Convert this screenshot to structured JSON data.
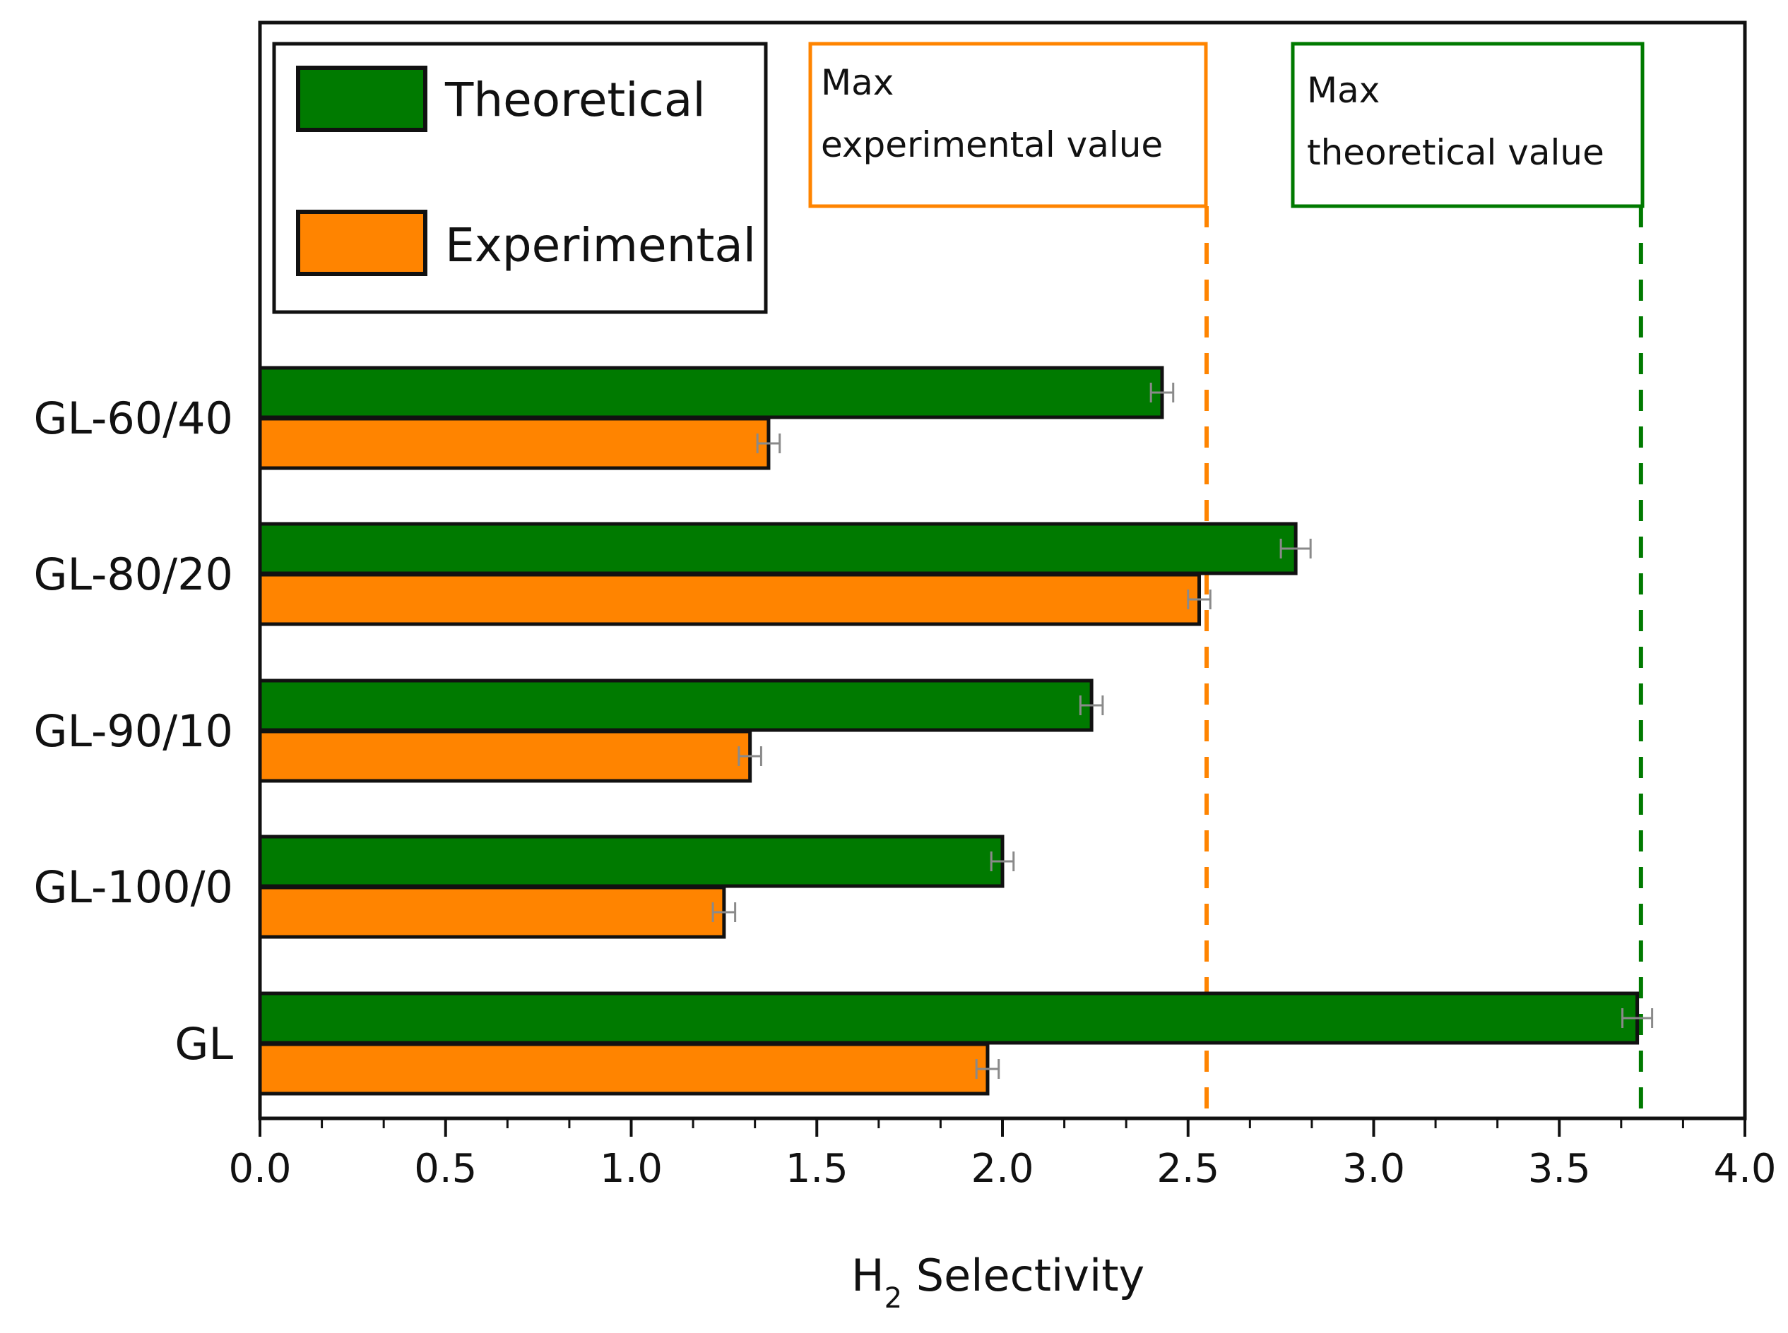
{
  "chart_data": {
    "type": "bar",
    "orientation": "horizontal",
    "categories": [
      "GL-60/40",
      "GL-80/20",
      "GL-90/10",
      "GL-100/0",
      "GL"
    ],
    "series": [
      {
        "name": "Theoretical",
        "color": "#007a00",
        "values": [
          2.43,
          2.79,
          2.24,
          2.0,
          3.71
        ],
        "errors": [
          0.03,
          0.04,
          0.03,
          0.03,
          0.04
        ]
      },
      {
        "name": "Experimental",
        "color": "#ff8400",
        "values": [
          1.37,
          2.53,
          1.32,
          1.25,
          1.96
        ],
        "errors": [
          0.03,
          0.03,
          0.03,
          0.03,
          0.03
        ]
      }
    ],
    "xlim": [
      0.0,
      4.0
    ],
    "xticks": [
      "0.0",
      "0.5",
      "1.0",
      "1.5",
      "2.0",
      "2.5",
      "3.0",
      "3.5",
      "4.0"
    ],
    "xlabel_main": "H",
    "xlabel_sub": "2",
    "xlabel_rest": " Selectivity",
    "ylabel": "",
    "legend_position": "top-left",
    "reference_lines": [
      {
        "label_line1": "Max",
        "label_line2": "experimental value",
        "value": 2.55,
        "color": "#ff8400"
      },
      {
        "label_line1": "Max",
        "label_line2": "theoretical value",
        "value": 3.72,
        "color": "#007a00"
      }
    ]
  }
}
